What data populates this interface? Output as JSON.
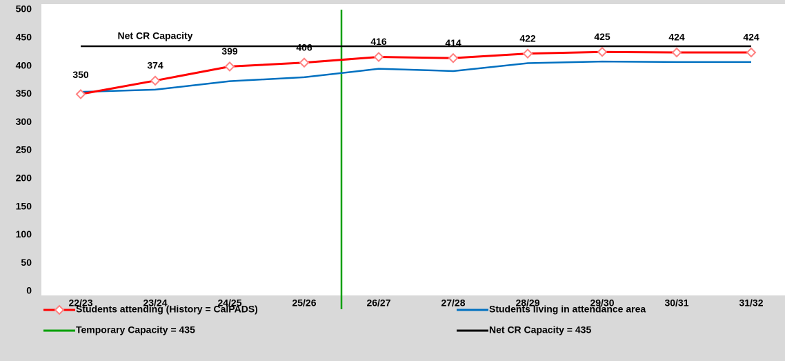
{
  "chart_data": {
    "type": "line",
    "categories": [
      "22/23",
      "23/24",
      "24/25",
      "25/26",
      "26/27",
      "27/28",
      "28/29",
      "29/30",
      "30/31",
      "31/32"
    ],
    "series": [
      {
        "name": "Students attending (History = CalPADS)",
        "color": "#ff0000",
        "marker": "diamond",
        "values": [
          350,
          374,
          399,
          406,
          416,
          414,
          422,
          425,
          424,
          424
        ]
      },
      {
        "name": "Students living in attendance area",
        "color": "#0070c0",
        "values": [
          354,
          358,
          373,
          380,
          395,
          391,
          405,
          408,
          407,
          407
        ]
      },
      {
        "name": "Net CR Capacity = 435",
        "color": "#000000",
        "values": [
          435,
          435,
          435,
          435,
          435,
          435,
          435,
          435,
          435,
          435
        ]
      }
    ],
    "vertical_line": {
      "name": "Temporary Capacity = 435",
      "color": "#00a000"
    },
    "annotation": "Net CR Capacity",
    "ylim": [
      0,
      500
    ],
    "yticks": [
      0,
      50,
      100,
      150,
      200,
      250,
      300,
      350,
      400,
      450,
      500
    ],
    "grid": false
  }
}
